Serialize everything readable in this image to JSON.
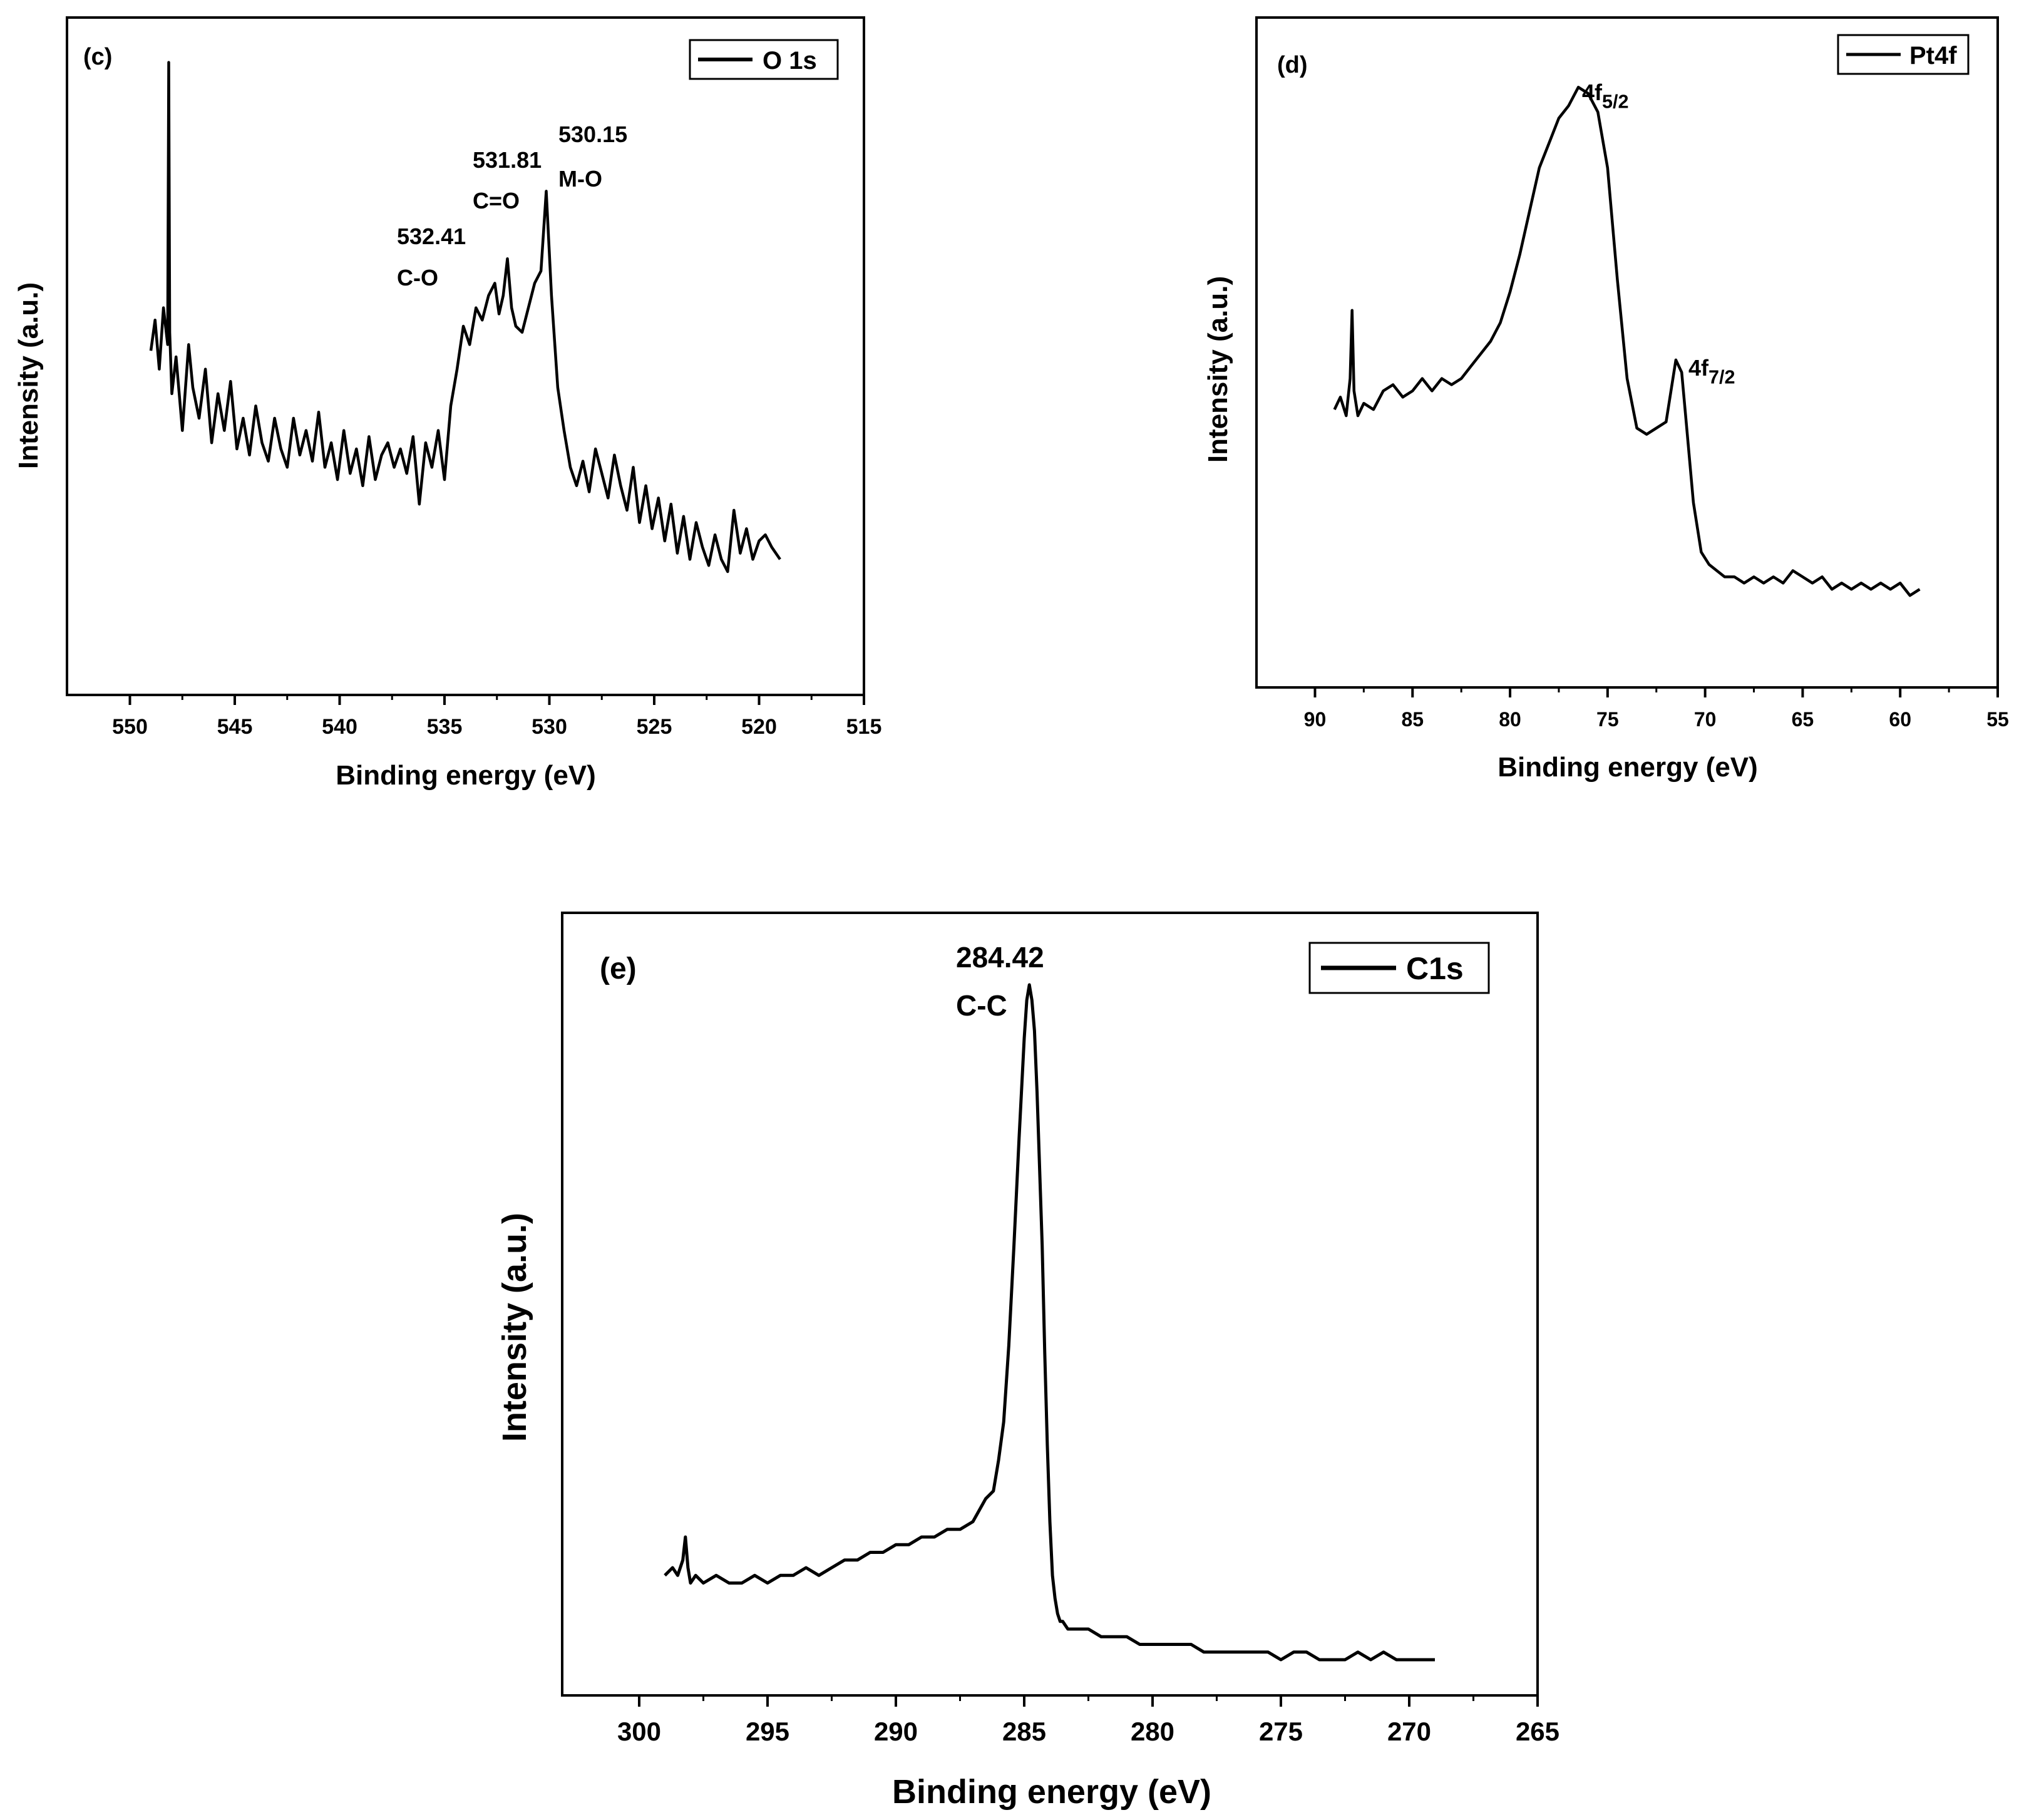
{
  "figure": {
    "line_color": "#000000",
    "background": "#ffffff",
    "panels_count": 3
  },
  "chart_data": [
    {
      "type": "line",
      "panel_label": "(c)",
      "title": "",
      "xlabel": "Binding energy (eV)",
      "ylabel": "Intensity (a.u.)",
      "xlim": [
        553,
        515
      ],
      "ylim": [
        0,
        100
      ],
      "x_reversed": true,
      "xticks": [
        550,
        545,
        540,
        535,
        530,
        525,
        520,
        515
      ],
      "xtick_labels": [
        "550",
        "545",
        "540",
        "535",
        "530",
        "525",
        "520",
        "515"
      ],
      "legend": {
        "entries": [
          "O 1s"
        ],
        "position": "top-right"
      },
      "series": [
        {
          "name": "O 1s",
          "x": [
            549.0,
            548.8,
            548.6,
            548.4,
            548.2,
            548.15,
            548.1,
            548.0,
            547.8,
            547.5,
            547.2,
            547.0,
            546.7,
            546.4,
            546.1,
            545.8,
            545.5,
            545.2,
            544.9,
            544.6,
            544.3,
            544.0,
            543.7,
            543.4,
            543.1,
            542.8,
            542.5,
            542.2,
            541.9,
            541.6,
            541.3,
            541.0,
            540.7,
            540.4,
            540.1,
            539.8,
            539.5,
            539.2,
            538.9,
            538.6,
            538.3,
            538.0,
            537.7,
            537.4,
            537.1,
            536.8,
            536.5,
            536.2,
            535.9,
            535.6,
            535.3,
            535.0,
            534.7,
            534.4,
            534.1,
            533.8,
            533.5,
            533.2,
            532.9,
            532.6,
            532.4,
            532.2,
            532.0,
            531.8,
            531.6,
            531.3,
            531.0,
            530.7,
            530.4,
            530.15,
            529.9,
            529.6,
            529.3,
            529.0,
            528.7,
            528.4,
            528.1,
            527.8,
            527.5,
            527.2,
            526.9,
            526.6,
            526.3,
            526.0,
            525.7,
            525.4,
            525.1,
            524.8,
            524.5,
            524.2,
            523.9,
            523.6,
            523.3,
            523.0,
            522.7,
            522.4,
            522.1,
            521.8,
            521.5,
            521.2,
            520.9,
            520.6,
            520.3,
            520.0,
            519.7,
            519.4,
            519.2,
            519.0
          ],
          "y": [
            51,
            56,
            48,
            58,
            52,
            98,
            54,
            44,
            50,
            38,
            52,
            45,
            40,
            48,
            36,
            44,
            38,
            46,
            35,
            40,
            34,
            42,
            36,
            33,
            40,
            35,
            32,
            40,
            34,
            38,
            33,
            41,
            32,
            36,
            30,
            38,
            31,
            35,
            29,
            37,
            30,
            34,
            36,
            32,
            35,
            31,
            37,
            26,
            36,
            32,
            38,
            30,
            42,
            48,
            55,
            52,
            58,
            56,
            60,
            62,
            57,
            60,
            66,
            58,
            55,
            54,
            58,
            62,
            64,
            77,
            60,
            45,
            38,
            32,
            29,
            33,
            28,
            35,
            31,
            27,
            34,
            29,
            25,
            32,
            23,
            29,
            22,
            27,
            20,
            26,
            18,
            24,
            17,
            23,
            19,
            16,
            21,
            17,
            15,
            25,
            18,
            22,
            17,
            20,
            21,
            19,
            18,
            17
          ]
        }
      ],
      "annotations": [
        {
          "text": "530.15",
          "x": 530.15,
          "line": 1
        },
        {
          "text": "M-O",
          "x": 530.15,
          "line": 2
        },
        {
          "text": "531.81",
          "x": 531.81,
          "line": 1
        },
        {
          "text": "C=O",
          "x": 531.81,
          "line": 2
        },
        {
          "text": "532.41",
          "x": 532.41,
          "line": 1
        },
        {
          "text": "C-O",
          "x": 532.41,
          "line": 2
        }
      ]
    },
    {
      "type": "line",
      "panel_label": "(d)",
      "title": "",
      "xlabel": "Binding energy (eV)",
      "ylabel": "Intensity (a.u.)",
      "xlim": [
        93,
        55
      ],
      "ylim": [
        0,
        100
      ],
      "x_reversed": true,
      "xticks": [
        90,
        85,
        80,
        75,
        70,
        65,
        60,
        55
      ],
      "xtick_labels": [
        "90",
        "85",
        "80",
        "75",
        "70",
        "65",
        "60",
        "55"
      ],
      "legend": {
        "entries": [
          "Pt4f"
        ],
        "position": "top-right"
      },
      "series": [
        {
          "name": "Pt4f",
          "x": [
            89.0,
            88.7,
            88.4,
            88.2,
            88.1,
            88.0,
            87.8,
            87.5,
            87.0,
            86.5,
            86.0,
            85.5,
            85.0,
            84.5,
            84.0,
            83.5,
            83.0,
            82.5,
            82.0,
            81.5,
            81.0,
            80.5,
            80.0,
            79.5,
            79.0,
            78.5,
            78.0,
            77.5,
            77.0,
            76.5,
            76.0,
            75.5,
            75.0,
            74.5,
            74.0,
            73.5,
            73.0,
            72.5,
            72.0,
            71.5,
            71.2,
            71.0,
            70.6,
            70.2,
            69.8,
            69.4,
            69.0,
            68.5,
            68.0,
            67.5,
            67.0,
            66.5,
            66.0,
            65.5,
            65.0,
            64.5,
            64.0,
            63.5,
            63.0,
            62.5,
            62.0,
            61.5,
            61.0,
            60.5,
            60.0,
            59.5,
            59.0
          ],
          "y": [
            41,
            43,
            40,
            46,
            57,
            44,
            40,
            42,
            41,
            44,
            45,
            43,
            44,
            46,
            44,
            46,
            45,
            46,
            48,
            50,
            52,
            55,
            60,
            66,
            73,
            80,
            84,
            88,
            90,
            93,
            92,
            89,
            80,
            62,
            46,
            38,
            37,
            38,
            39,
            49,
            47,
            40,
            26,
            18,
            16,
            15,
            14,
            14,
            13,
            14,
            13,
            14,
            13,
            15,
            14,
            13,
            14,
            12,
            13,
            12,
            13,
            12,
            13,
            12,
            13,
            11,
            12
          ]
        }
      ],
      "annotations": [
        {
          "text": "4f",
          "subscript": "5/2",
          "x": 76.5
        },
        {
          "text": "4f",
          "subscript": "7/2",
          "x": 71.3
        }
      ]
    },
    {
      "type": "line",
      "panel_label": "(e)",
      "title": "",
      "xlabel": "Binding energy (eV)",
      "ylabel": "Intensity (a.u.)",
      "xlim": [
        303,
        265
      ],
      "ylim": [
        0,
        100
      ],
      "x_reversed": true,
      "xticks": [
        300,
        295,
        290,
        285,
        280,
        275,
        270,
        265
      ],
      "xtick_labels": [
        "300",
        "295",
        "290",
        "285",
        "280",
        "275",
        "270",
        "265"
      ],
      "legend": {
        "entries": [
          "C1s"
        ],
        "position": "top-right"
      },
      "series": [
        {
          "name": "C1s",
          "x": [
            299.0,
            298.7,
            298.5,
            298.3,
            298.2,
            298.1,
            298.0,
            297.8,
            297.5,
            297.0,
            296.5,
            296.0,
            295.5,
            295.0,
            294.5,
            294.0,
            293.5,
            293.0,
            292.5,
            292.0,
            291.5,
            291.0,
            290.5,
            290.0,
            289.5,
            289.0,
            288.5,
            288.0,
            287.5,
            287.0,
            286.5,
            286.2,
            286.0,
            285.8,
            285.6,
            285.4,
            285.2,
            285.0,
            284.9,
            284.8,
            284.7,
            284.6,
            284.5,
            284.42,
            284.3,
            284.2,
            284.1,
            284.0,
            283.9,
            283.8,
            283.7,
            283.6,
            283.5,
            283.3,
            283.1,
            282.9,
            282.5,
            282.0,
            281.5,
            281.0,
            280.5,
            280.0,
            279.5,
            279.0,
            278.5,
            278.0,
            277.5,
            277.0,
            276.5,
            276.0,
            275.5,
            275.0,
            274.5,
            274.0,
            273.5,
            273.0,
            272.5,
            272.0,
            271.5,
            271.0,
            270.5,
            270.0,
            269.5,
            269.0
          ],
          "y": [
            15,
            16,
            15,
            17,
            20,
            16,
            14,
            15,
            14,
            15,
            14,
            14,
            15,
            14,
            15,
            15,
            16,
            15,
            16,
            17,
            17,
            18,
            18,
            19,
            19,
            20,
            20,
            21,
            21,
            22,
            25,
            26,
            30,
            35,
            45,
            58,
            72,
            85,
            90,
            92,
            90,
            86,
            78,
            70,
            58,
            44,
            32,
            22,
            15,
            12,
            10,
            9,
            9,
            8,
            8,
            8,
            8,
            7,
            7,
            7,
            6,
            6,
            6,
            6,
            6,
            5,
            5,
            5,
            5,
            5,
            5,
            4,
            5,
            5,
            4,
            4,
            4,
            5,
            4,
            5,
            4,
            4,
            4,
            4
          ]
        }
      ],
      "annotations": [
        {
          "text": "284.42",
          "x": 284.42,
          "line": 1
        },
        {
          "text": "C-C",
          "x": 284.42,
          "line": 2
        }
      ]
    }
  ]
}
